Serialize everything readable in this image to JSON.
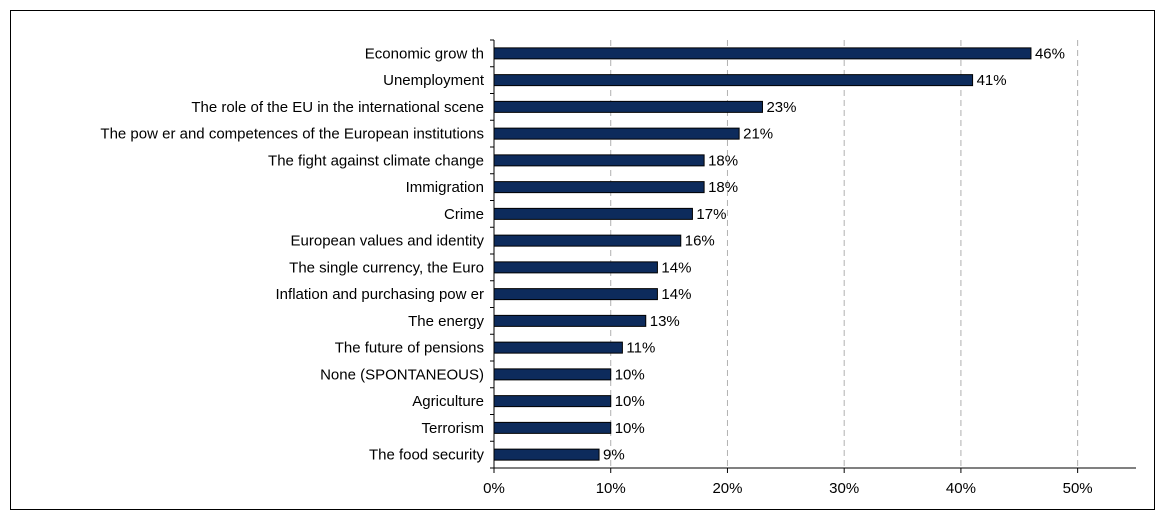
{
  "chart_data": {
    "type": "bar",
    "orientation": "horizontal",
    "categories": [
      "Economic grow th",
      "Unemployment",
      "The role of the EU in the international scene",
      "The pow er and competences of the European institutions",
      "The fight against climate change",
      "Immigration",
      "Crime",
      "European values and identity",
      "The single currency, the Euro",
      "Inflation and purchasing pow er",
      "The energy",
      "The future of pensions",
      "None (SPONTANEOUS)",
      "Agriculture",
      "Terrorism",
      "The food security"
    ],
    "values": [
      46,
      41,
      23,
      21,
      18,
      18,
      17,
      16,
      14,
      14,
      13,
      11,
      10,
      10,
      10,
      9
    ],
    "value_labels": [
      "46%",
      "41%",
      "23%",
      "21%",
      "18%",
      "18%",
      "17%",
      "16%",
      "14%",
      "14%",
      "13%",
      "11%",
      "10%",
      "10%",
      "10%",
      "9%"
    ],
    "xlim": [
      0,
      55
    ],
    "x_ticks": [
      0,
      10,
      20,
      30,
      40,
      50
    ],
    "x_tick_labels": [
      "0%",
      "10%",
      "20%",
      "30%",
      "40%",
      "50%"
    ],
    "grid": "vertical dashed",
    "title": "",
    "xlabel": "",
    "ylabel": "",
    "colors": {
      "bar": "#0d2b5c",
      "bar_edge": "#000000",
      "grid": "#b0b0b0"
    }
  }
}
